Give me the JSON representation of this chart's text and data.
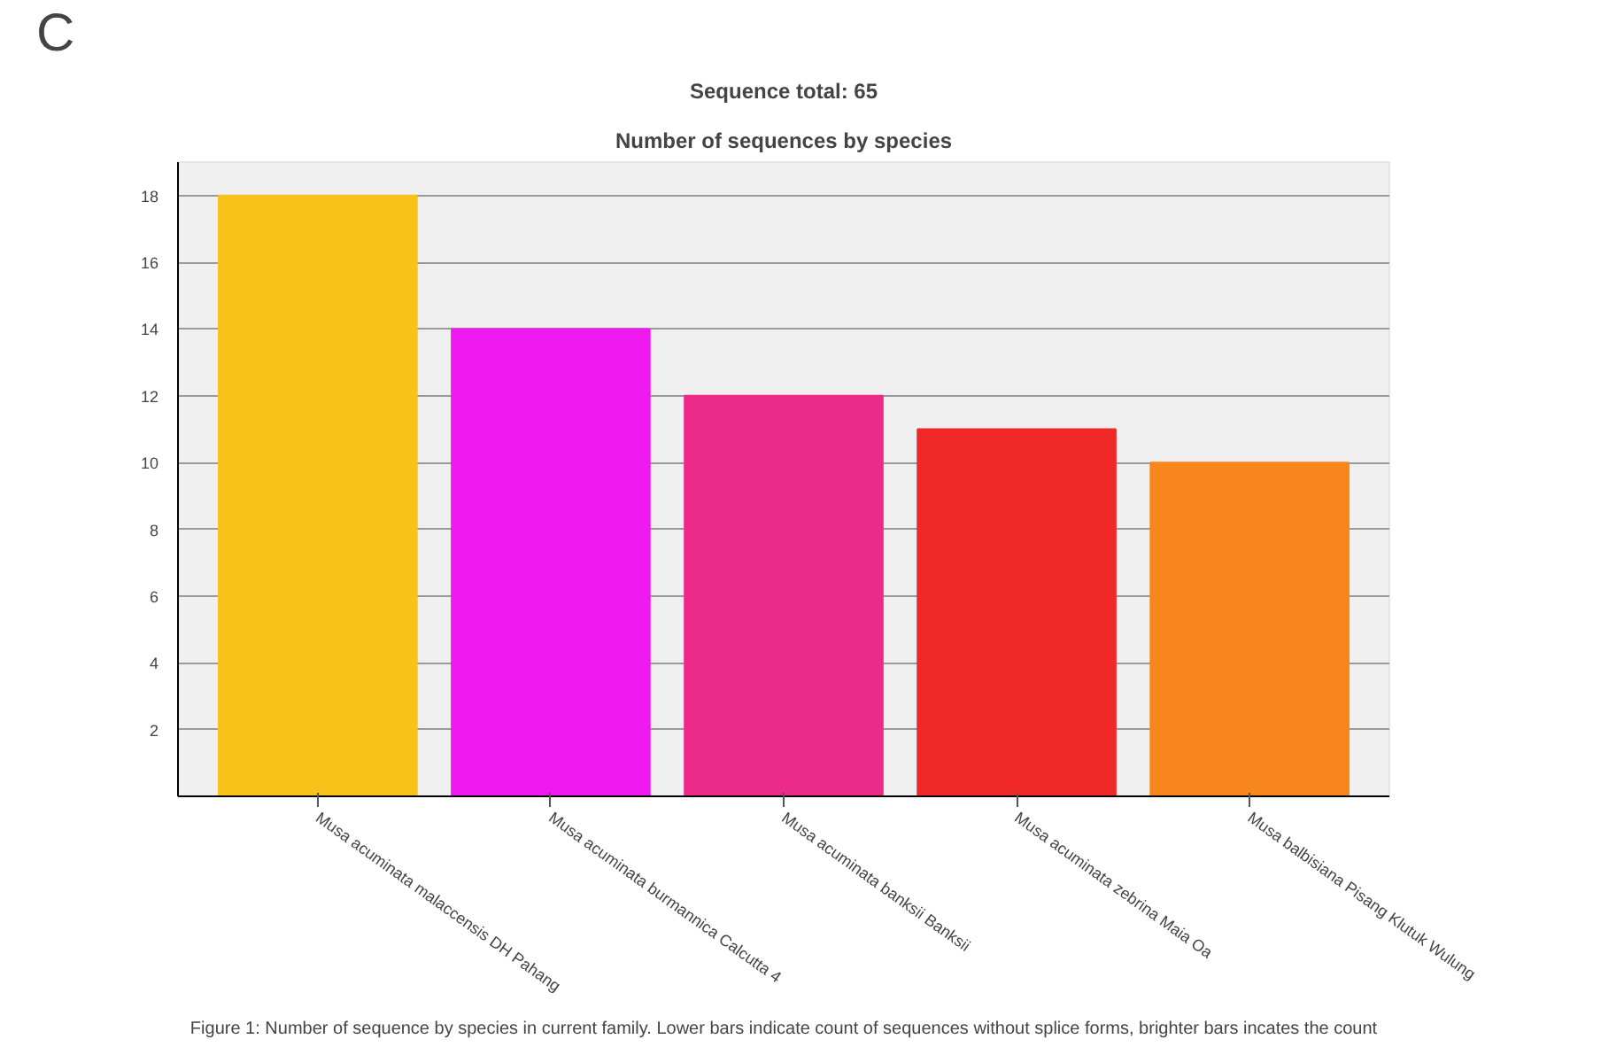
{
  "chart_data": {
    "type": "bar",
    "title": "Number of sequences by species",
    "subtitle": "Sequence total: 65",
    "annotations": [
      "C",
      "Figure 1: Number of sequence by species in current family. Lower bars indicate count of sequences without splice forms, brighter bars incates the count"
    ],
    "categories": [
      "Musa acuminata malaccensis DH Pahang",
      "Musa acuminata burmannica Calcutta 4",
      "Musa acuminata banksii Banksii",
      "Musa acuminata zebrina Maia Oa",
      "Musa balbisiana Pisang Klutuk Wulung"
    ],
    "values": [
      18,
      14,
      12,
      11,
      10
    ],
    "colors": [
      "#f9c21a",
      "#f01af0",
      "#ec2a8a",
      "#f02828",
      "#f7861c"
    ],
    "ylim": [
      0,
      19
    ],
    "yticks": [
      2,
      4,
      6,
      8,
      10,
      12,
      14,
      16,
      18
    ],
    "grid": "y"
  }
}
